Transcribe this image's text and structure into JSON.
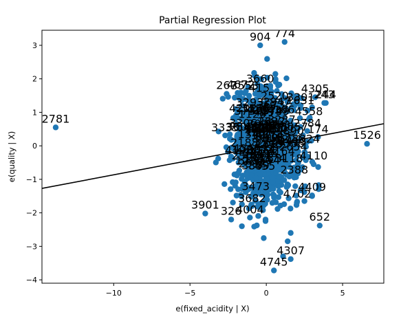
{
  "chart_data": {
    "type": "scatter",
    "title": "Partial Regression Plot",
    "xlabel": "e(fixed_acidity | X)",
    "ylabel": "e(quality | X)",
    "xlim": [
      -14.7,
      7.7
    ],
    "ylim": [
      -4.1,
      3.45
    ],
    "xticks": [
      -10,
      -5,
      0,
      5
    ],
    "yticks": [
      -4,
      -3,
      -2,
      -1,
      0,
      1,
      2,
      3
    ],
    "grid": false,
    "point_color": "#1f77b4",
    "line_color": "#000000",
    "fit_line": {
      "x": [
        -14.7,
        7.7
      ],
      "y": [
        -1.27,
        0.66
      ]
    },
    "labeled_points": [
      {
        "label": "774",
        "x": 1.2,
        "y": 3.1
      },
      {
        "label": "904",
        "x": -0.4,
        "y": 3.0
      },
      {
        "label": "2781",
        "x": -13.8,
        "y": 0.55
      },
      {
        "label": "1526",
        "x": 6.6,
        "y": 0.06
      },
      {
        "label": "244",
        "x": 3.9,
        "y": 1.28
      },
      {
        "label": "243",
        "x": 3.8,
        "y": 1.28
      },
      {
        "label": "3901",
        "x": -4.0,
        "y": -2.02
      },
      {
        "label": "652",
        "x": 3.5,
        "y": -2.38
      },
      {
        "label": "4745",
        "x": 0.5,
        "y": -3.72
      },
      {
        "label": "4307",
        "x": 1.6,
        "y": -3.38
      },
      {
        "label": "4409",
        "x": 3.0,
        "y": -1.48
      },
      {
        "label": "4110",
        "x": 3.1,
        "y": -0.55
      },
      {
        "label": "326",
        "x": -2.3,
        "y": -2.2
      },
      {
        "label": "4305",
        "x": 3.2,
        "y": 1.45
      },
      {
        "label": "267",
        "x": -2.6,
        "y": 1.55
      }
    ],
    "extra_points": [
      {
        "x": 2.0,
        "y": -1.7
      },
      {
        "x": 2.5,
        "y": -1.65
      },
      {
        "x": 3.0,
        "y": -1.5
      },
      {
        "x": 1.6,
        "y": -2.6
      },
      {
        "x": 1.4,
        "y": -2.85
      },
      {
        "x": 1.1,
        "y": -3.3
      },
      {
        "x": -1.6,
        "y": -2.4
      },
      {
        "x": -2.0,
        "y": 1.1
      },
      {
        "x": 2.7,
        "y": 1.05
      },
      {
        "x": -1.9,
        "y": -0.2
      },
      {
        "x": 2.1,
        "y": -0.5
      }
    ],
    "cloud": {
      "count": 1100,
      "center_x": 0.0,
      "spread_x": 1.1,
      "center_y": 0.0,
      "spread_y": 0.85,
      "seed": 7
    },
    "cloud_label_count": 90,
    "cloud_label_range": [
      0,
      4800
    ]
  }
}
